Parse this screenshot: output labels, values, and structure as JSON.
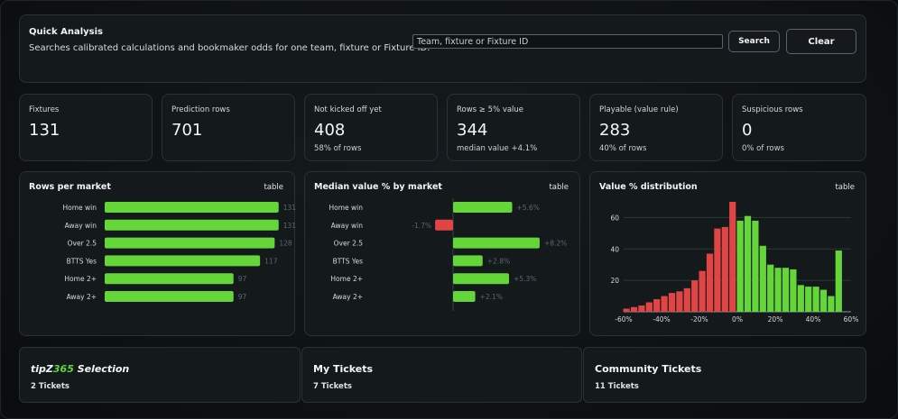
{
  "quick_analysis": {
    "title": "Quick Analysis",
    "description": "Searches calibrated calculations and bookmaker odds for one team, fixture or Fixture ID.",
    "search_placeholder": "Team, fixture or Fixture ID",
    "search_label": "Search",
    "clear_label": "Clear"
  },
  "stats": [
    {
      "label": "Fixtures",
      "value": "131",
      "sub": ""
    },
    {
      "label": "Prediction rows",
      "value": "701",
      "sub": ""
    },
    {
      "label": "Not kicked off yet",
      "value": "408",
      "sub": "58% of rows"
    },
    {
      "label": "Rows ≥ 5% value",
      "value": "344",
      "sub": "median value +4.1%"
    },
    {
      "label": "Playable (value rule)",
      "value": "283",
      "sub": "40% of rows"
    },
    {
      "label": "Suspicious rows",
      "value": "0",
      "sub": "0% of rows"
    }
  ],
  "table_link": "table",
  "colors": {
    "green": "#65d63a",
    "red": "#e04444",
    "grid": "#2a3a2e",
    "axis": "#8a9296"
  },
  "chart_data": [
    {
      "type": "bar",
      "title": "Rows per market",
      "categories": [
        "Home win",
        "Away win",
        "Over 2.5",
        "BTTS Yes",
        "Home 2+",
        "Away 2+"
      ],
      "values": [
        131,
        131,
        128,
        117,
        97,
        97
      ],
      "value_labels": [
        "131",
        "131",
        "128",
        "117",
        "97",
        "97"
      ],
      "xlim": [
        0,
        140
      ]
    },
    {
      "type": "bar",
      "title": "Median value % by market",
      "categories": [
        "Home win",
        "Away win",
        "Over 2.5",
        "BTTS Yes",
        "Home 2+",
        "Away 2+"
      ],
      "values": [
        5.6,
        -1.7,
        8.2,
        2.8,
        5.3,
        2.1
      ],
      "value_labels": [
        "+5.6%",
        "-1.7%",
        "+8.2%",
        "+2.8%",
        "+5.3%",
        "+2.1%"
      ],
      "xlim": [
        -2.5,
        10
      ]
    },
    {
      "type": "bar",
      "title": "Value % distribution",
      "x_ticks": [
        "-60%",
        "-40%",
        "-20%",
        "0%",
        "20%",
        "40%",
        "60%"
      ],
      "y_ticks": [
        "20",
        "40",
        "60"
      ],
      "ylim": [
        0,
        70
      ],
      "xlim": [
        -60,
        60
      ],
      "bins": [
        {
          "x": -60,
          "v": 2,
          "neg": true
        },
        {
          "x": -56,
          "v": 3,
          "neg": true
        },
        {
          "x": -52,
          "v": 4,
          "neg": true
        },
        {
          "x": -48,
          "v": 6,
          "neg": true
        },
        {
          "x": -44,
          "v": 8,
          "neg": true
        },
        {
          "x": -40,
          "v": 10,
          "neg": true
        },
        {
          "x": -36,
          "v": 12,
          "neg": true
        },
        {
          "x": -32,
          "v": 13,
          "neg": true
        },
        {
          "x": -28,
          "v": 15,
          "neg": true
        },
        {
          "x": -24,
          "v": 20,
          "neg": true
        },
        {
          "x": -20,
          "v": 26,
          "neg": true
        },
        {
          "x": -16,
          "v": 37,
          "neg": true
        },
        {
          "x": -12,
          "v": 53,
          "neg": true
        },
        {
          "x": -8,
          "v": 54,
          "neg": true
        },
        {
          "x": -4,
          "v": 70,
          "neg": true
        },
        {
          "x": 0,
          "v": 58,
          "neg": false
        },
        {
          "x": 4,
          "v": 61,
          "neg": false
        },
        {
          "x": 8,
          "v": 58,
          "neg": false
        },
        {
          "x": 12,
          "v": 42,
          "neg": false
        },
        {
          "x": 16,
          "v": 30,
          "neg": false
        },
        {
          "x": 20,
          "v": 28,
          "neg": false
        },
        {
          "x": 24,
          "v": 28,
          "neg": false
        },
        {
          "x": 28,
          "v": 27,
          "neg": false
        },
        {
          "x": 32,
          "v": 17,
          "neg": false
        },
        {
          "x": 36,
          "v": 16,
          "neg": false
        },
        {
          "x": 40,
          "v": 16,
          "neg": false
        },
        {
          "x": 44,
          "v": 14,
          "neg": false
        },
        {
          "x": 48,
          "v": 10,
          "neg": false
        },
        {
          "x": 52,
          "v": 39,
          "neg": false
        }
      ]
    }
  ],
  "tiles": [
    {
      "title_main": "tipZ",
      "title_accent": "365",
      "title_rest": " Selection",
      "count": "2 Tickets"
    },
    {
      "title": "My Tickets",
      "count": "7 Tickets"
    },
    {
      "title": "Community Tickets",
      "count": "11 Tickets"
    }
  ]
}
